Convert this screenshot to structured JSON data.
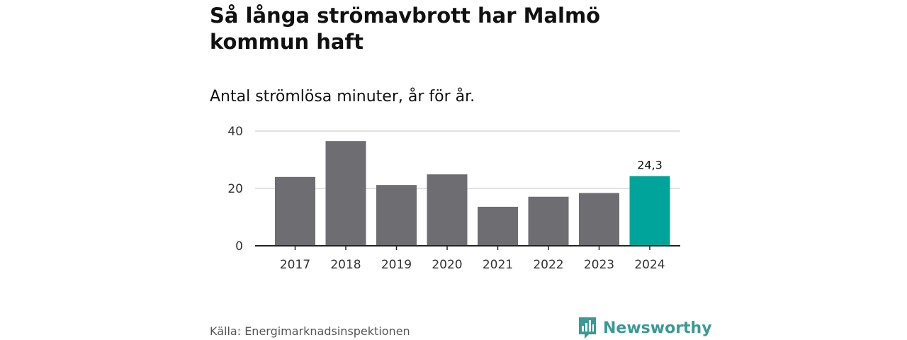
{
  "title": "Så långa strömavbrott har Malmö kommun haft",
  "subtitle": "Antal strömlösa minuter, år för år.",
  "source": "Källa: Energimarknadsinspektionen",
  "brand": {
    "name": "Newsworthy",
    "icon": "newsworthy-logo-icon",
    "color": "#3a9a94"
  },
  "chart_data": {
    "type": "bar",
    "categories": [
      "2017",
      "2018",
      "2019",
      "2020",
      "2021",
      "2022",
      "2023",
      "2024"
    ],
    "values": [
      24.0,
      36.5,
      21.2,
      24.9,
      13.6,
      17.1,
      18.4,
      24.3
    ],
    "highlight_index": 7,
    "data_labels": [
      null,
      null,
      null,
      null,
      null,
      null,
      null,
      "24,3"
    ],
    "colors": {
      "default": "#6e6d72",
      "highlight": "#00a49a",
      "grid": "#d9d9d9",
      "axis": "#222222"
    },
    "yticks": [
      0,
      20,
      40
    ],
    "ylim": [
      0,
      40
    ],
    "xlabel": "",
    "ylabel": "",
    "grid": true,
    "legend": "none"
  }
}
